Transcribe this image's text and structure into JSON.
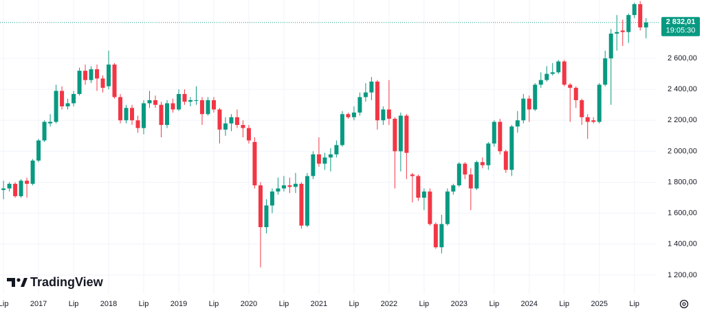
{
  "chart_data": {
    "type": "candlestick",
    "brand": "TradingView",
    "up_color": "#089981",
    "down_color": "#f23645",
    "grid": true,
    "xlim": [
      -0.6,
      111.8
    ],
    "ylim": [
      1080,
      2977
    ],
    "yticks": [
      {
        "value": 1200,
        "label": "1 200,00"
      },
      {
        "value": 1400,
        "label": "1 400,00"
      },
      {
        "value": 1600,
        "label": "1 600,00"
      },
      {
        "value": 1800,
        "label": "1 800,00"
      },
      {
        "value": 2000,
        "label": "2 000,00"
      },
      {
        "value": 2200,
        "label": "2 200,00"
      },
      {
        "value": 2400,
        "label": "2 400,00"
      },
      {
        "value": 2600,
        "label": "2 600,00"
      }
    ],
    "xticks": [
      {
        "value": 0,
        "label": "Lip"
      },
      {
        "value": 6,
        "label": "2017"
      },
      {
        "value": 12,
        "label": "Lip"
      },
      {
        "value": 18,
        "label": "2018"
      },
      {
        "value": 24,
        "label": "Lip"
      },
      {
        "value": 30,
        "label": "2019"
      },
      {
        "value": 36,
        "label": "Lip"
      },
      {
        "value": 42,
        "label": "2020"
      },
      {
        "value": 48,
        "label": "Lip"
      },
      {
        "value": 54,
        "label": "2021"
      },
      {
        "value": 60,
        "label": "Lip"
      },
      {
        "value": 66,
        "label": "2022"
      },
      {
        "value": 72,
        "label": "Lip"
      },
      {
        "value": 78,
        "label": "2023"
      },
      {
        "value": 84,
        "label": "Lip"
      },
      {
        "value": 90,
        "label": "2024"
      },
      {
        "value": 96,
        "label": "Lip"
      },
      {
        "value": 102,
        "label": "2025"
      },
      {
        "value": 108,
        "label": "Lip"
      }
    ],
    "last_price": {
      "value": 2832.01,
      "label": "2 832,01"
    },
    "countdown": "19:05:30",
    "open": [
      1750,
      1760,
      1790,
      1710,
      1810,
      1790,
      1940,
      2070,
      2180,
      2190,
      2390,
      2290,
      2310,
      2370,
      2520,
      2460,
      2530,
      2470,
      2420,
      2560,
      2350,
      2200,
      2280,
      2200,
      2150,
      2310,
      2330,
      2300,
      2170,
      2310,
      2270,
      2370,
      2320,
      2330,
      2330,
      2240,
      2330,
      2270,
      2140,
      2180,
      2220,
      2170,
      2150,
      2060,
      1780,
      1510,
      1650,
      1740,
      1760,
      1780,
      1770,
      1790,
      1520,
      1840,
      1980,
      1920,
      1960,
      1980,
      2040,
      2240,
      2220,
      2250,
      2350,
      2380,
      2450,
      2200,
      2270,
      2210,
      2000,
      2230,
      1850,
      1840,
      1700,
      1740,
      1530,
      1380,
      1530,
      1740,
      1780,
      1920,
      1850,
      1760,
      1930,
      1910,
      2050,
      2190,
      2000,
      1880,
      2160,
      2200,
      2340,
      2270,
      2430,
      2460,
      2500,
      2510,
      2580,
      2430,
      2410,
      2330,
      2220,
      2200,
      2190,
      2430,
      2600,
      2760,
      2780,
      2770,
      2880,
      2950,
      2800
    ],
    "high": [
      1810,
      1800,
      1800,
      1820,
      1830,
      1950,
      2080,
      2200,
      2240,
      2430,
      2420,
      2340,
      2390,
      2540,
      2560,
      2550,
      2560,
      2490,
      2650,
      2570,
      2370,
      2300,
      2300,
      2230,
      2330,
      2390,
      2360,
      2320,
      2330,
      2340,
      2400,
      2400,
      2350,
      2420,
      2350,
      2350,
      2350,
      2280,
      2220,
      2240,
      2270,
      2200,
      2170,
      2090,
      1800,
      1690,
      1760,
      1830,
      1840,
      1830,
      1860,
      1800,
      1860,
      2000,
      2090,
      1990,
      2020,
      2070,
      2260,
      2250,
      2290,
      2380,
      2440,
      2480,
      2460,
      2290,
      2460,
      2220,
      2250,
      2240,
      1860,
      1850,
      1760,
      1760,
      1540,
      1590,
      1760,
      1790,
      1930,
      1930,
      1890,
      1940,
      1960,
      2060,
      2200,
      2210,
      2010,
      2170,
      2260,
      2370,
      2360,
      2440,
      2510,
      2550,
      2570,
      2590,
      2590,
      2440,
      2420,
      2340,
      2240,
      2220,
      2440,
      2650,
      2790,
      2880,
      2850,
      2890,
      2960,
      2970,
      2860
    ],
    "low": [
      1690,
      1740,
      1700,
      1700,
      1700,
      1780,
      1930,
      2060,
      2160,
      2180,
      2270,
      2270,
      2290,
      2360,
      2430,
      2440,
      2390,
      2380,
      2400,
      2340,
      2180,
      2180,
      2170,
      2120,
      2110,
      2280,
      2280,
      2090,
      2150,
      2250,
      2260,
      2300,
      2290,
      2300,
      2170,
      2230,
      2250,
      2050,
      2100,
      2130,
      2150,
      2090,
      2050,
      1760,
      1250,
      1470,
      1600,
      1720,
      1740,
      1730,
      1730,
      1500,
      1510,
      1820,
      1900,
      1880,
      1870,
      1960,
      2030,
      2210,
      2200,
      2230,
      2320,
      2330,
      2140,
      2170,
      2170,
      1760,
      1870,
      1820,
      1670,
      1680,
      1620,
      1520,
      1370,
      1340,
      1520,
      1720,
      1770,
      1820,
      1620,
      1750,
      1890,
      1880,
      2030,
      1980,
      1860,
      1840,
      2120,
      2180,
      2190,
      2260,
      2410,
      2450,
      2490,
      2500,
      2420,
      2190,
      2280,
      2170,
      2080,
      2180,
      2180,
      2420,
      2300,
      2650,
      2680,
      2700,
      2860,
      2780,
      2730
    ],
    "close": [
      1760,
      1790,
      1710,
      1810,
      1790,
      1940,
      2070,
      2190,
      2190,
      2390,
      2290,
      2310,
      2370,
      2520,
      2460,
      2530,
      2470,
      2410,
      2560,
      2350,
      2200,
      2280,
      2200,
      2150,
      2310,
      2330,
      2300,
      2170,
      2310,
      2270,
      2370,
      2320,
      2330,
      2330,
      2240,
      2330,
      2270,
      2140,
      2180,
      2220,
      2170,
      2150,
      2070,
      1780,
      1510,
      1650,
      1740,
      1760,
      1780,
      1770,
      1790,
      1520,
      1840,
      1980,
      1920,
      1960,
      1980,
      2040,
      2240,
      2220,
      2250,
      2350,
      2380,
      2450,
      2200,
      2270,
      2210,
      2000,
      2230,
      1990,
      1840,
      1700,
      1740,
      1530,
      1380,
      1530,
      1740,
      1780,
      1920,
      1850,
      1760,
      1930,
      1910,
      2050,
      2190,
      2000,
      1880,
      2160,
      2200,
      2340,
      2270,
      2430,
      2460,
      2500,
      2510,
      2580,
      2430,
      2410,
      2330,
      2220,
      2190,
      2190,
      2430,
      2600,
      2760,
      2770,
      2770,
      2880,
      2950,
      2800,
      2832.01
    ]
  }
}
